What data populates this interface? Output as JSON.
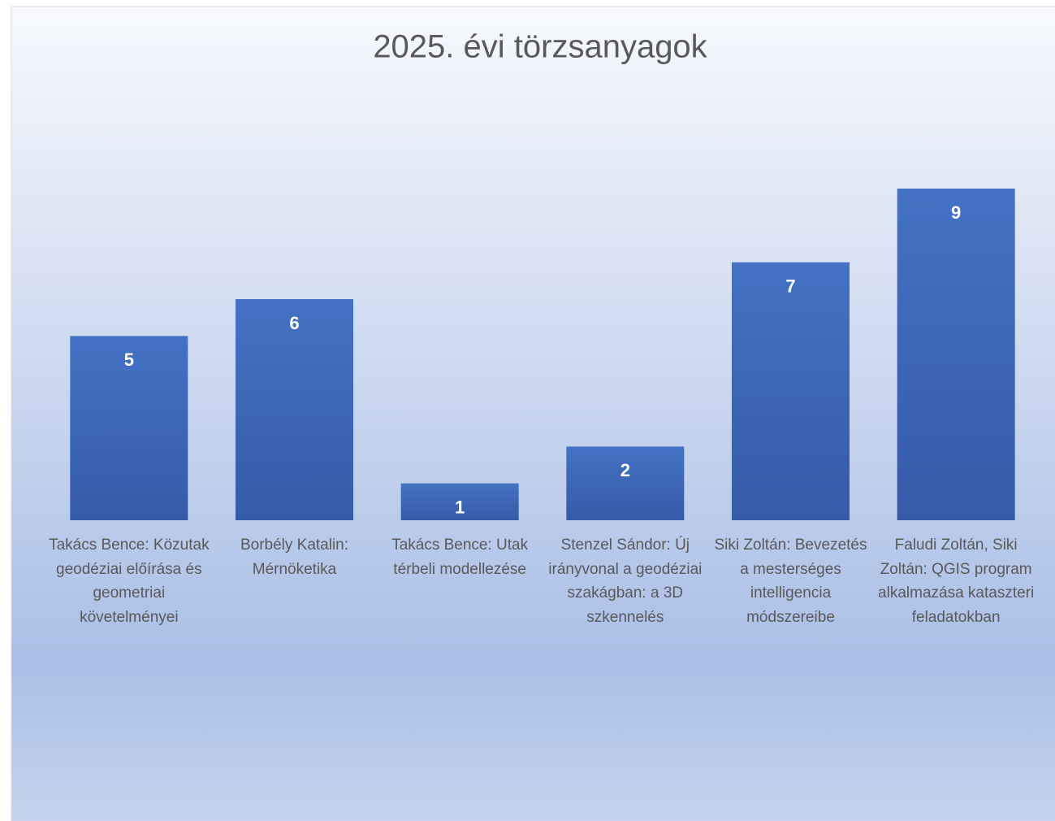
{
  "chart_data": {
    "type": "bar",
    "title": "2025. évi törzsanyagok",
    "categories": [
      "Takács Bence: Közutak geodéziai előírása és geometriai követelményei",
      "Borbély Katalin: Mérnöketika",
      "Takács Bence: Utak térbeli modellezése",
      "Stenzel Sándor: Új irányvonal a geodéziai szakágban: a 3D szkennelés",
      "Siki Zoltán: Bevezetés a mesterséges intelligencia módszereibe",
      "Faludi Zoltán, Siki Zoltán: QGIS program alkalmazása kataszteri feladatokban"
    ],
    "values": [
      5,
      6,
      1,
      2,
      7,
      9
    ],
    "color": "#4472c4"
  }
}
